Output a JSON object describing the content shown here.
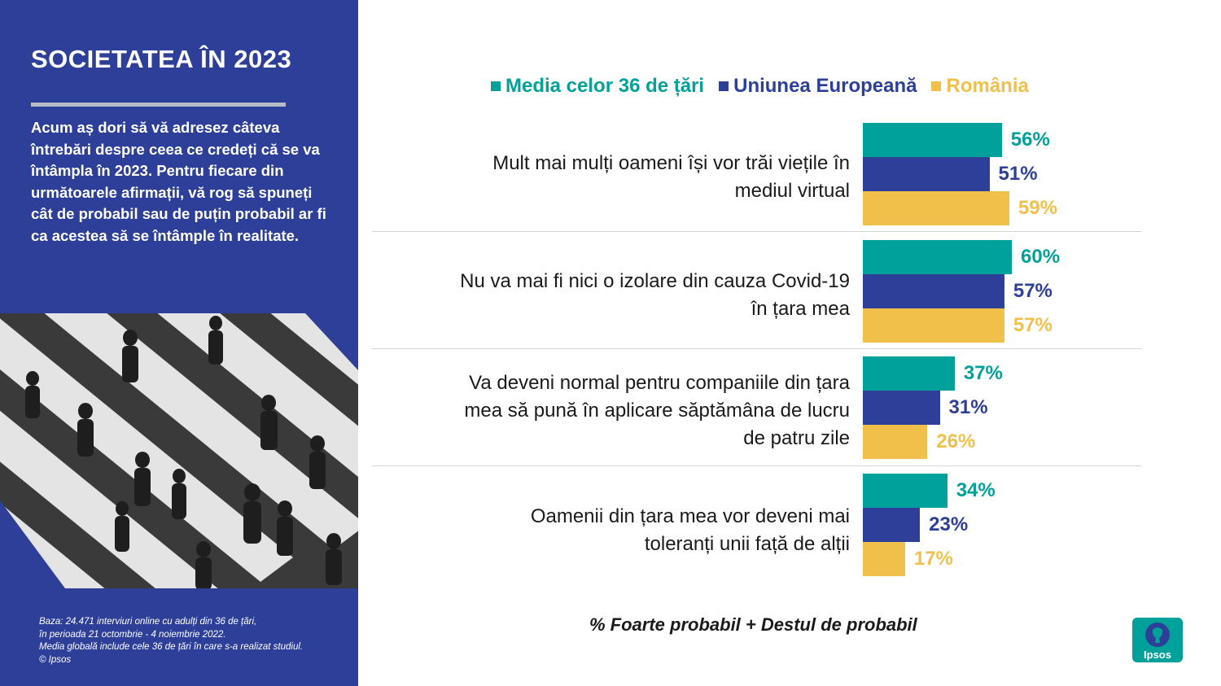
{
  "left_panel": {
    "title": "SOCIETATEA ÎN 2023",
    "intro": "Acum aș dori să vă adresez câteva întrebări despre ceea ce credeți că se va întâmpla în 2023. Pentru fiecare din următoarele afirmații, vă rog să spuneți cât de probabil sau de puțin probabil ar fi ca acestea să se întâmple în realitate.",
    "footnote_lines": [
      "Baza: 24.471 interviuri online cu adulți din 36 de țări,",
      "în perioada 21 octombrie - 4 noiembrie 2022.",
      "Media globală include cele 36 de țări în care s-a realizat studiul.",
      "© Ipsos"
    ],
    "background_color": "#2e3f99"
  },
  "logo": {
    "text": "Ipsos",
    "color": "#00a19a"
  },
  "chart_data": {
    "type": "bar",
    "orientation": "horizontal",
    "categories": [
      "Mult mai mulți oameni își vor trăi viețile în mediul virtual",
      "Nu va mai fi nici o izolare din cauza Covid-19 în țara mea",
      "Va deveni normal pentru companiile din țara mea să pună în aplicare săptămâna de lucru de patru zile",
      "Oamenii din țara mea vor deveni mai toleranți unii față de alții"
    ],
    "series": [
      {
        "name": "Media celor 36 de țări",
        "color": "#00a19a",
        "values": [
          56,
          60,
          37,
          34
        ]
      },
      {
        "name": "Uniunea Europeană",
        "color": "#2e3f99",
        "values": [
          51,
          57,
          31,
          23
        ]
      },
      {
        "name": "România",
        "color": "#f0c04a",
        "values": [
          59,
          57,
          26,
          17
        ]
      }
    ],
    "value_suffix": "%",
    "xlim": [
      0,
      100
    ],
    "legend_position": "top",
    "grid": false,
    "caption": "% Foarte probabil + Destul de probabil"
  }
}
